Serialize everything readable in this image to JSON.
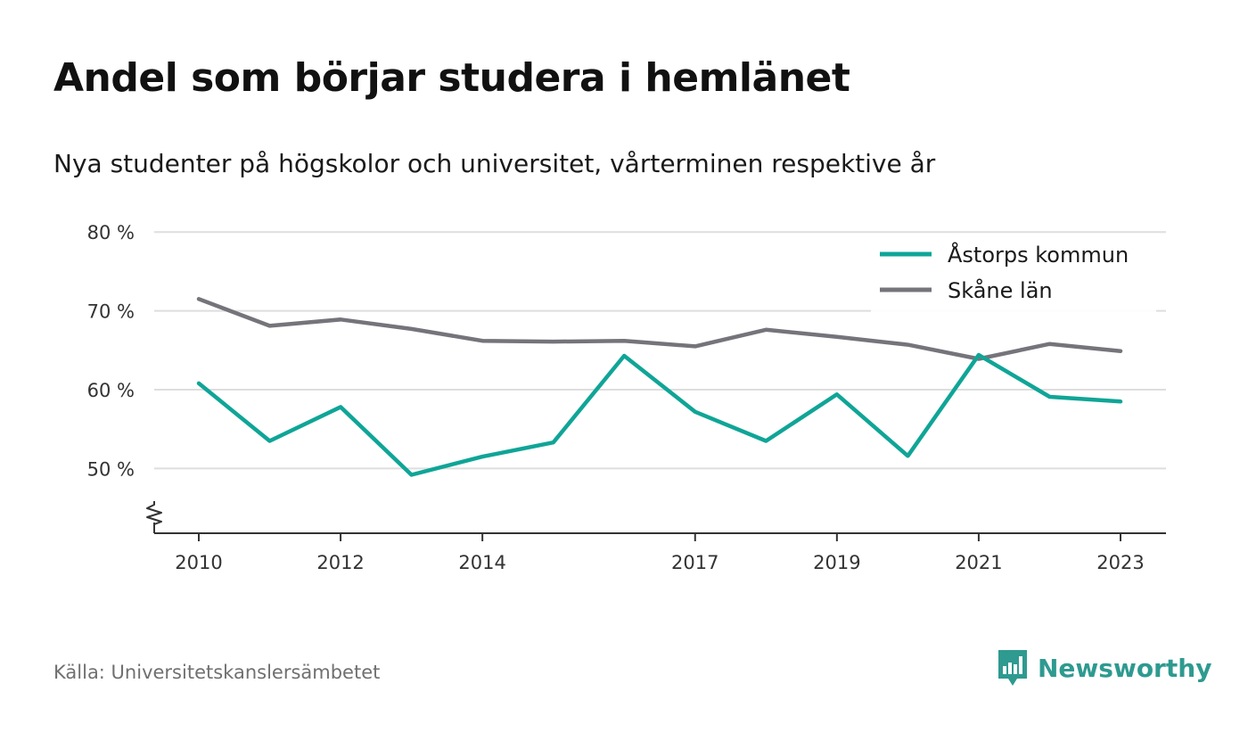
{
  "title": "Andel som börjar studera i hemlänet",
  "subtitle": "Nya studenter på högskolor och universitet, vårterminen respektive år",
  "source": "Källa: Universitetskanslersämbetet",
  "brand": {
    "name": "Newsworthy",
    "icon": "newsworthy-logo-icon",
    "color": "#2e9a90"
  },
  "chart_data": {
    "type": "line",
    "x": [
      2010,
      2011,
      2012,
      2013,
      2014,
      2015,
      2016,
      2017,
      2018,
      2019,
      2020,
      2021,
      2022,
      2023
    ],
    "x_tick_labels": [
      "2010",
      "2012",
      "2014",
      "2017",
      "2019",
      "2021",
      "2023"
    ],
    "y_tick_labels": [
      "50 %",
      "60 %",
      "70 %",
      "80 %"
    ],
    "y_ticks": [
      50,
      60,
      70,
      80
    ],
    "ylim": [
      41.5,
      80
    ],
    "y_axis_break": true,
    "grid": true,
    "legend_position": "top-right",
    "series": [
      {
        "name": "Åstorps kommun",
        "color": "#0fa597",
        "values": [
          60.8,
          53.5,
          57.8,
          49.2,
          51.5,
          53.3,
          64.3,
          57.2,
          53.5,
          59.4,
          51.6,
          64.4,
          59.1,
          58.5
        ]
      },
      {
        "name": "Skåne län",
        "color": "#75747b",
        "values": [
          71.5,
          68.1,
          68.9,
          67.7,
          66.2,
          66.1,
          66.2,
          65.5,
          67.6,
          66.7,
          65.7,
          63.9,
          65.8,
          64.9
        ]
      }
    ]
  }
}
